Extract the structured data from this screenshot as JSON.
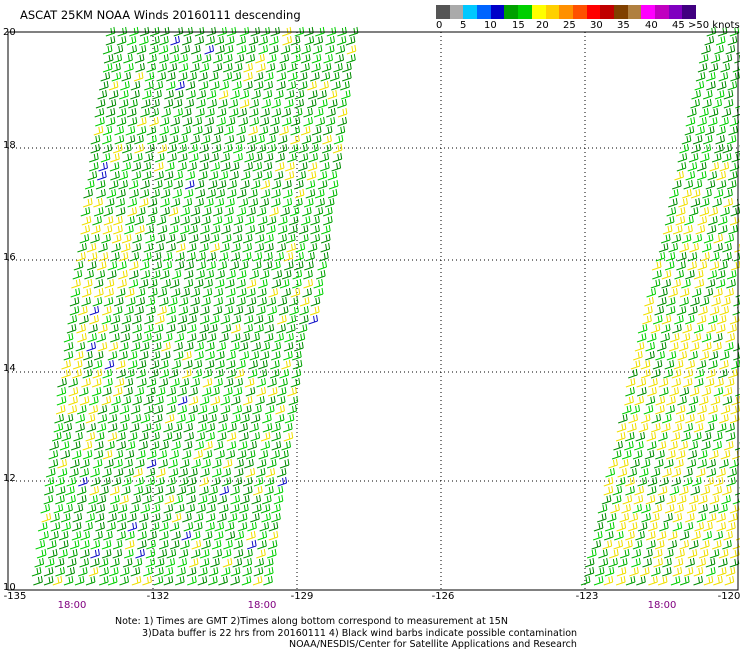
{
  "title": "ASCAT 25KM NOAA Winds 20160111 descending",
  "colorbar": {
    "colors": [
      "#555555",
      "#aaaaaa",
      "#00c8ff",
      "#0064ff",
      "#0000c8",
      "#00a000",
      "#00d000",
      "#ffff00",
      "#ffd000",
      "#ff9000",
      "#ff5000",
      "#ff0000",
      "#c00000",
      "#804000",
      "#b08040",
      "#ff00ff",
      "#c000c0",
      "#8000c0",
      "#400080"
    ],
    "labels": [
      "0",
      "5",
      "10",
      "15",
      "20",
      "25",
      "30",
      "35",
      "40",
      "45",
      ">50 knots"
    ]
  },
  "map": {
    "lon_range": [
      -135,
      -120
    ],
    "lat_range": [
      10,
      20
    ],
    "lat_ticks": [
      "10",
      "12",
      "14",
      "16",
      "18",
      "20"
    ],
    "lon_ticks": [
      "-135",
      "-132",
      "-129",
      "-126",
      "-123",
      "-120"
    ],
    "time_labels": [
      "18:00",
      "18:00",
      "18:00"
    ]
  },
  "notes": [
    "Note: 1) Times are GMT 2)Times along bottom correspond to measurement at 15N",
    "3)Data buffer is 22 hrs from 20160111 4) Black wind barbs indicate possible contamination",
    "NOAA/NESDIS/Center for Satellite Applications and Research"
  ]
}
